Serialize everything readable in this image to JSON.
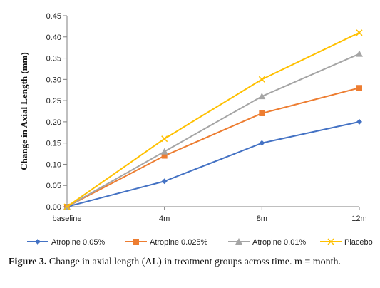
{
  "chart_data": {
    "type": "line",
    "categories": [
      "baseline",
      "4m",
      "8m",
      "12m"
    ],
    "series": [
      {
        "name": "Atropine 0.05%",
        "values": [
          0.0,
          0.06,
          0.15,
          0.2
        ],
        "color": "#4472c4",
        "marker": "diamond"
      },
      {
        "name": "Atropine 0.025%",
        "values": [
          0.0,
          0.12,
          0.22,
          0.28
        ],
        "color": "#ed7d31",
        "marker": "square"
      },
      {
        "name": "Atropine 0.01%",
        "values": [
          0.0,
          0.13,
          0.26,
          0.36
        ],
        "color": "#a5a5a5",
        "marker": "triangle"
      },
      {
        "name": "Placebo",
        "values": [
          0.0,
          0.16,
          0.3,
          0.41
        ],
        "color": "#ffc000",
        "marker": "x"
      }
    ],
    "title": "",
    "xlabel": "",
    "ylabel": "Change in Axial Length (mm)",
    "ylim": [
      0,
      0.45
    ],
    "yticks": [
      "0.00",
      "0.05",
      "0.10",
      "0.15",
      "0.20",
      "0.25",
      "0.30",
      "0.35",
      "0.40",
      "0.45"
    ],
    "grid": false,
    "legend": "bottom"
  },
  "caption": {
    "label": "Figure 3.",
    "text": "Change in axial length (AL) in treatment groups across time. m = month."
  }
}
